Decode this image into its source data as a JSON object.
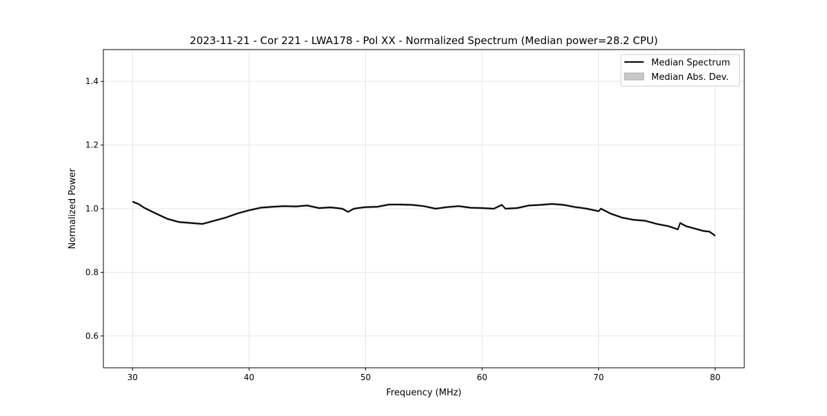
{
  "chart_data": {
    "type": "line",
    "title": "2023-11-21 - Cor 221 - LWA178 - Pol XX - Normalized Spectrum (Median power=28.2 CPU)",
    "xlabel": "Frequency (MHz)",
    "ylabel": "Normalized Power",
    "xlim": [
      27.5,
      82.5
    ],
    "ylim": [
      0.5,
      1.5
    ],
    "xticks": [
      30,
      40,
      50,
      60,
      70,
      80
    ],
    "yticks": [
      0.6,
      0.8,
      1.0,
      1.2,
      1.4
    ],
    "xtick_labels": [
      "30",
      "40",
      "50",
      "60",
      "70",
      "80"
    ],
    "ytick_labels": [
      "0.6",
      "0.8",
      "1.0",
      "1.2",
      "1.4"
    ],
    "grid": true,
    "legend_position": "top-right",
    "legend": [
      "Median Spectrum",
      "Median Abs. Dev."
    ],
    "series": [
      {
        "name": "Median Spectrum",
        "color": "#000000",
        "x": [
          30,
          30.5,
          31,
          32,
          33,
          34,
          35,
          36,
          37,
          38,
          39,
          40,
          41,
          42,
          43,
          44,
          45,
          46,
          47,
          48,
          48.5,
          49,
          50,
          51,
          52,
          53,
          54,
          55,
          56,
          57,
          58,
          59,
          60,
          61,
          61.7,
          62,
          63,
          64,
          65,
          66,
          67,
          68,
          69,
          70,
          70.2,
          71,
          72,
          73,
          74,
          75,
          76,
          76.8,
          77,
          77.5,
          78,
          79,
          79.5,
          80
        ],
        "y": [
          1.022,
          1.015,
          1.003,
          0.985,
          0.968,
          0.958,
          0.955,
          0.952,
          0.962,
          0.972,
          0.985,
          0.995,
          1.003,
          1.006,
          1.008,
          1.007,
          1.01,
          1.002,
          1.004,
          1.0,
          0.99,
          1.0,
          1.005,
          1.006,
          1.013,
          1.013,
          1.012,
          1.008,
          1.0,
          1.005,
          1.008,
          1.003,
          1.002,
          1.0,
          1.012,
          1.0,
          1.002,
          1.01,
          1.012,
          1.015,
          1.012,
          1.005,
          1.0,
          0.992,
          1.0,
          0.985,
          0.972,
          0.965,
          0.962,
          0.952,
          0.945,
          0.935,
          0.955,
          0.945,
          0.94,
          0.93,
          0.928,
          0.915
        ]
      },
      {
        "name": "Median Abs. Dev.",
        "color": "#c8c8c8",
        "half_width": 0.003
      }
    ]
  }
}
